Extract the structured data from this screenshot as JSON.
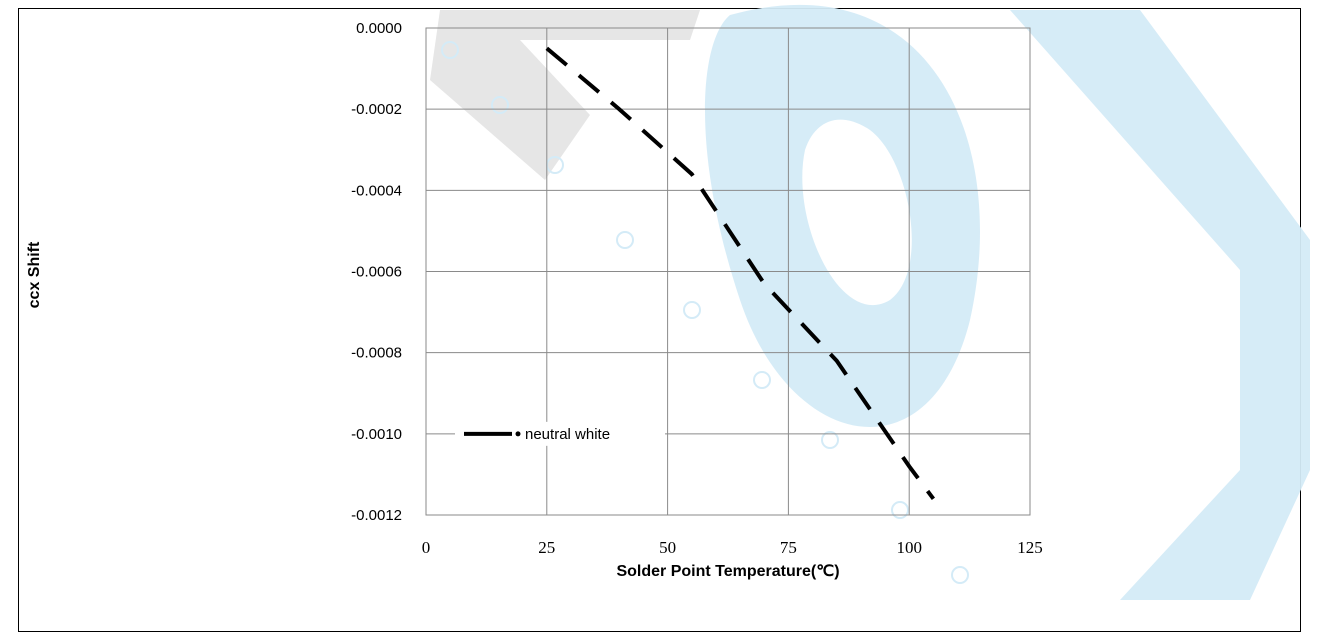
{
  "chart_data": {
    "type": "line",
    "xlabel": "Solder Point Temperature(℃)",
    "ylabel": "ccx Shift",
    "xlim": [
      0,
      125
    ],
    "ylim": [
      -0.0012,
      0.0
    ],
    "x_ticks": [
      "0",
      "25",
      "50",
      "75",
      "100",
      "125"
    ],
    "y_ticks": [
      "0.0000",
      "-0.0002",
      "-0.0004",
      "-0.0006",
      "-0.0008",
      "-0.0010",
      "-0.0012"
    ],
    "grid": true,
    "legend_position": "lower-left",
    "series": [
      {
        "name": "neutral white",
        "line_style": "dashed",
        "color": "#000000",
        "x": [
          25,
          40,
          55,
          70,
          85,
          100,
          105
        ],
        "y": [
          -5e-05,
          -0.0002,
          -0.00036,
          -0.00063,
          -0.00082,
          -0.00108,
          -0.00116
        ]
      }
    ]
  },
  "watermark": {
    "colors": [
      "#d4ebf7",
      "#e3e3e3",
      "#5bb8e6"
    ]
  }
}
